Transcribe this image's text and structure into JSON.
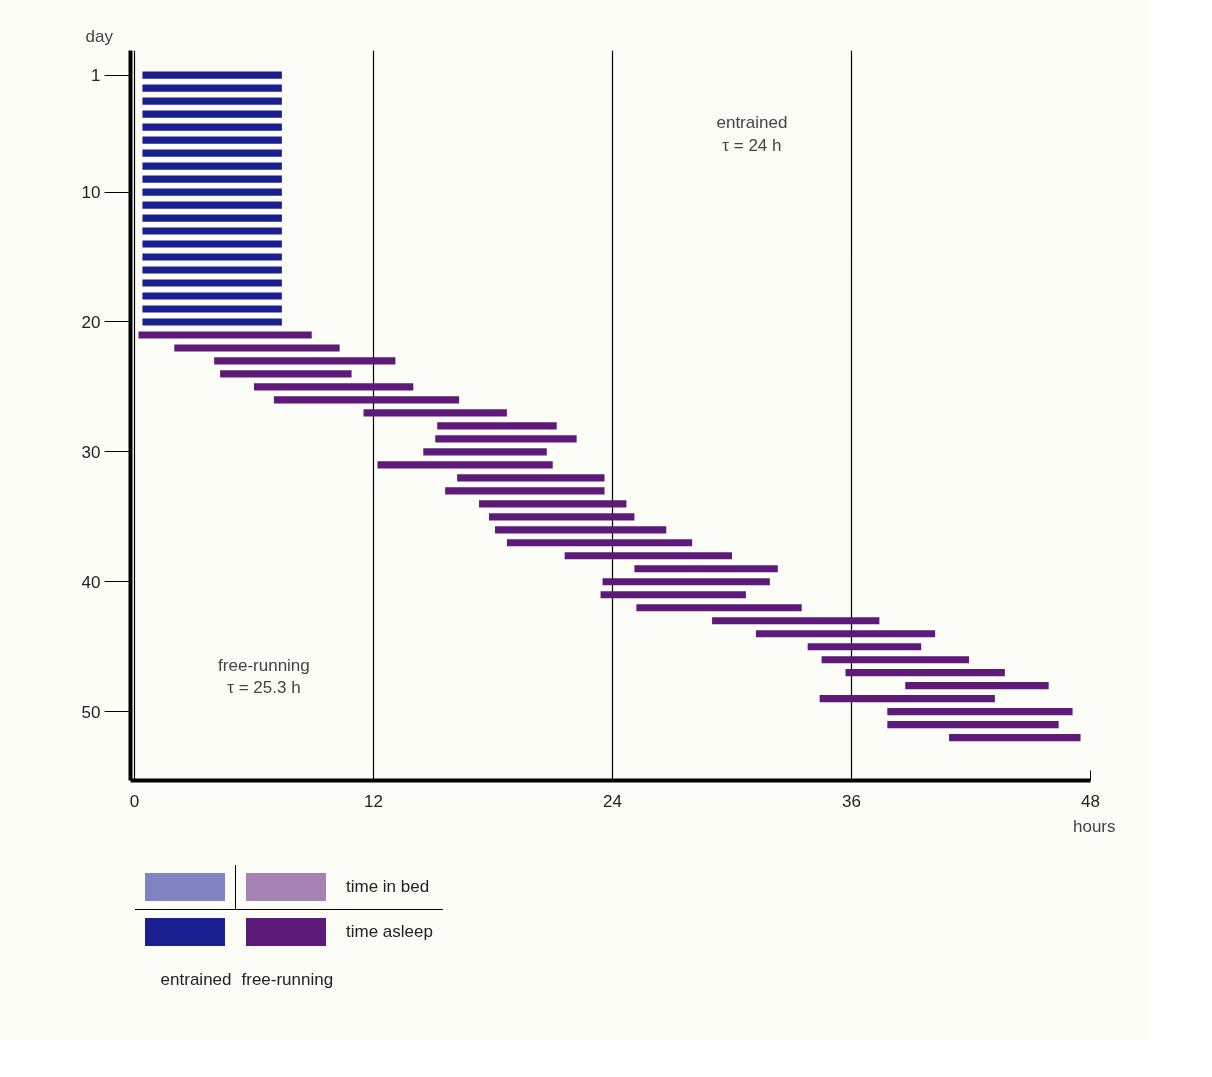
{
  "chart_data": {
    "type": "bar",
    "orientation": "horizontal",
    "xlabel": "hours",
    "ylabel": "day",
    "xlim": [
      -0.2,
      48
    ],
    "xticks": [
      0,
      12,
      24,
      36,
      48
    ],
    "ylim": [
      55.3,
      -0.9
    ],
    "yticks": [
      1,
      10,
      20,
      30,
      40,
      50
    ],
    "grid": "x",
    "series": [
      {
        "color": "#1a1f8f",
        "x": [
          1,
          2,
          3,
          4,
          5,
          6,
          7,
          8,
          9,
          10,
          11,
          12,
          13,
          14,
          15,
          16,
          17,
          18,
          19,
          20
        ],
        "base": [
          0.4,
          0.4,
          0.4,
          0.4,
          0.4,
          0.4,
          0.4,
          0.4,
          0.4,
          0.4,
          0.4,
          0.4,
          0.4,
          0.4,
          0.4,
          0.4,
          0.4,
          0.4,
          0.4,
          0.4
        ],
        "values": [
          7.0,
          7.0,
          7.0,
          7.0,
          7.0,
          7.0,
          7.0,
          7.0,
          7.0,
          7.0,
          7.0,
          7.0,
          7.0,
          7.0,
          7.0,
          7.0,
          7.0,
          7.0,
          7.0,
          7.0
        ]
      },
      {
        "color": "#5e1a78",
        "x": [
          21,
          22,
          23,
          24,
          25,
          26,
          27,
          28,
          29,
          30,
          31,
          32,
          33,
          34,
          35,
          36,
          37,
          38,
          39,
          40,
          41,
          42,
          43,
          44,
          45,
          46,
          47,
          48,
          49,
          50,
          51,
          52
        ],
        "base": [
          0.2,
          2.0,
          4.0,
          4.3,
          6.0,
          7.0,
          11.5,
          15.2,
          15.1,
          14.5,
          12.2,
          16.2,
          15.6,
          17.3,
          17.8,
          18.1,
          18.7,
          21.6,
          25.1,
          23.5,
          23.4,
          25.2,
          29.0,
          31.2,
          33.8,
          34.5,
          35.7,
          38.7,
          34.4,
          37.8,
          37.8,
          40.9
        ],
        "values": [
          8.7,
          8.3,
          9.1,
          6.6,
          8.0,
          9.3,
          7.2,
          6.0,
          7.1,
          6.2,
          8.8,
          7.4,
          8.0,
          7.4,
          7.3,
          8.6,
          9.3,
          8.4,
          7.2,
          8.4,
          7.3,
          8.3,
          8.4,
          9.0,
          5.7,
          7.4,
          8.0,
          7.2,
          8.8,
          9.3,
          8.6,
          6.6
        ]
      }
    ],
    "annotations": [
      "entrained\nτ = 24 h",
      "free-running\nτ = 25.3 h",
      "time in bed",
      "time asleep",
      "entrained",
      "free-running"
    ]
  }
}
